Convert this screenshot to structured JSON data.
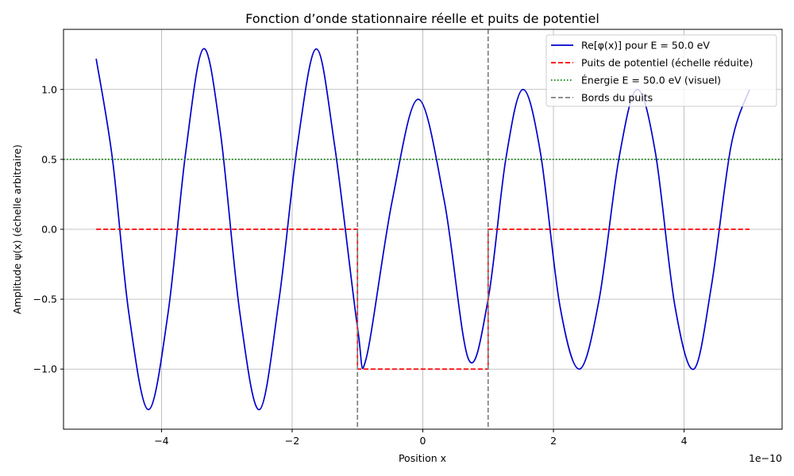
{
  "chart_data": {
    "type": "line",
    "title": "Fonction d’onde stationnaire réelle et puits de potentiel",
    "xlabel": "Position x",
    "ylabel": "Amplitude ψ(x) (échelle arbitraire)",
    "x_offset_text": "1e−10",
    "x_scale": 1e-10,
    "xlim": [
      -5.5e-10,
      5.5e-10
    ],
    "ylim": [
      -1.43,
      1.43
    ],
    "xticks": [
      -4e-10,
      -2e-10,
      0,
      2e-10,
      4e-10
    ],
    "xtick_labels": [
      "−4",
      "−2",
      "0",
      "2",
      "4"
    ],
    "yticks": [
      -1.0,
      -0.5,
      0.0,
      0.5,
      1.0
    ],
    "ytick_labels": [
      "−1.0",
      "−0.5",
      "0.0",
      "0.5",
      "1.0"
    ],
    "grid": true,
    "legend_position": "top-right",
    "series": [
      {
        "name": "Re[φ(x)] pour E = 50.0 eV",
        "color": "#0000cc",
        "style": "solid",
        "x": [
          -5e-10,
          -4.75e-10,
          -4.5e-10,
          -4.2e-10,
          -3.9e-10,
          -3.63e-10,
          -3.36e-10,
          -3.1e-10,
          -2.8e-10,
          -2.5e-10,
          -2.2e-10,
          -1.92e-10,
          -1.63e-10,
          -1.35e-10,
          -1e-10,
          -8.7e-11,
          -4.7e-11,
          -7e-12,
          3.3e-11,
          7e-11,
          1e-10,
          1.27e-10,
          1.53e-10,
          1.8e-10,
          2.1e-10,
          2.4e-10,
          2.7e-10,
          3e-10,
          3.28e-10,
          3.56e-10,
          3.86e-10,
          4.15e-10,
          4.42e-10,
          4.72e-10,
          5e-10
        ],
        "values": [
          1.22,
          0.5,
          -0.6,
          -1.29,
          -0.6,
          0.55,
          1.29,
          0.7,
          -0.6,
          -1.29,
          -0.5,
          0.6,
          1.29,
          0.6,
          -0.7,
          -0.93,
          0.2,
          0.93,
          0.2,
          -0.93,
          -0.5,
          0.5,
          1.0,
          0.55,
          -0.55,
          -1.0,
          -0.5,
          0.5,
          1.0,
          0.55,
          -0.55,
          -1.0,
          -0.4,
          0.6,
          1.0
        ]
      },
      {
        "name": "Puits de potentiel (échelle réduite)",
        "color": "#ff0000",
        "style": "dashed",
        "x": [
          -5e-10,
          -1e-10,
          -1e-10,
          1e-10,
          1e-10,
          5e-10
        ],
        "values": [
          0,
          0,
          -1,
          -1,
          0,
          0
        ]
      },
      {
        "name": "Énergie E = 50.0 eV (visuel)",
        "color": "#008000",
        "style": "dotted",
        "hline": 0.5
      },
      {
        "name": "Bords du puits",
        "color": "#808080",
        "style": "dashed",
        "vlines": [
          -1e-10,
          1e-10
        ]
      }
    ]
  }
}
